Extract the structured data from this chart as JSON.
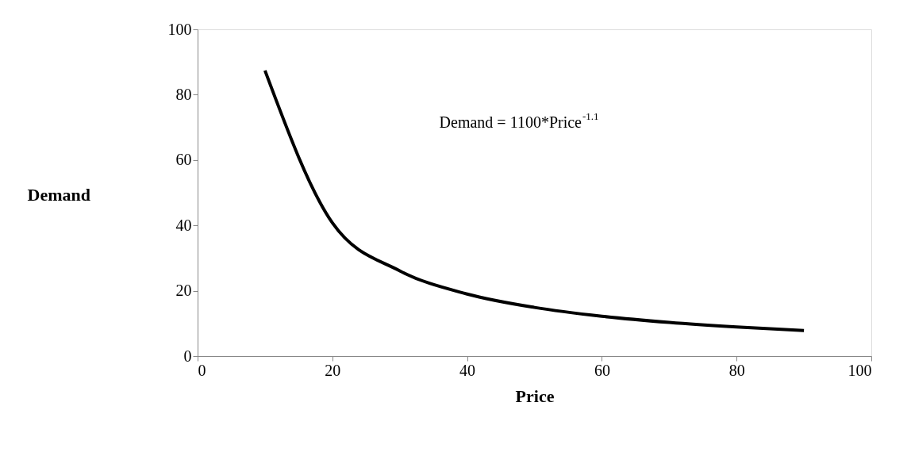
{
  "chart_data": {
    "type": "line",
    "xlabel": "Price",
    "ylabel": "Demand",
    "annotations": [
      "Demand = 1100*Price$^{-1.1}$"
    ],
    "x": [
      10,
      20,
      30,
      40,
      50,
      60,
      70,
      80,
      90
    ],
    "series": [
      {
        "color": "#000000",
        "values": [
          87.4,
          40.8,
          26.1,
          19.0,
          14.9,
          12.2,
          10.3,
          8.9,
          7.8
        ]
      }
    ],
    "xlim": [
      0,
      100
    ],
    "ylim": [
      0,
      100
    ],
    "xticks": [
      0,
      20,
      40,
      60,
      80,
      100
    ],
    "yticks": [
      0,
      20,
      40,
      60,
      80,
      100
    ],
    "grid": false,
    "legend": false,
    "marker": "none",
    "line_style": "solid"
  }
}
